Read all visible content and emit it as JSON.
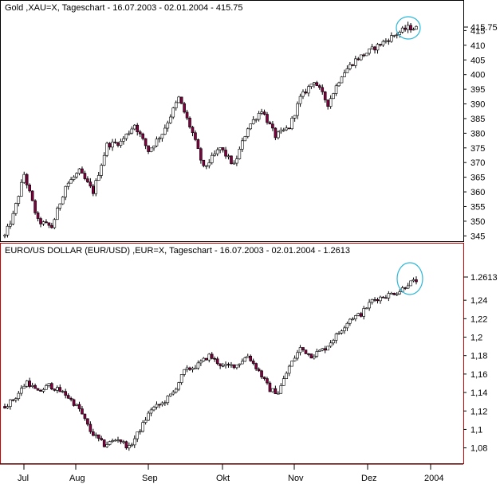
{
  "colors": {
    "bull": "#ffffff",
    "bear": "#800040",
    "wick": "#000000",
    "highlight": "#2bb7d8",
    "panel_border_active": "#cc0000",
    "panel_border": "#000000"
  },
  "x_axis": {
    "labels": [
      "Jul",
      "Aug",
      "Sep",
      "Okt",
      "Nov",
      "Dez",
      "2004"
    ]
  },
  "chart_data": [
    {
      "type": "candlestick",
      "title": "Gold ,XAU=X, Tageschart - 16.07.2003 - 02.01.2004 - 415.75",
      "last_value": "415.75",
      "y_ticks": [
        "415",
        "410",
        "405",
        "400",
        "395",
        "390",
        "385",
        "380",
        "375",
        "370",
        "365",
        "360",
        "355",
        "350",
        "345"
      ],
      "ylim": [
        344,
        420
      ],
      "x_range": [
        "2003-07-16",
        "2004-01-02"
      ],
      "grid": false,
      "anchors": [
        [
          0,
          345
        ],
        [
          3,
          352
        ],
        [
          7,
          366
        ],
        [
          12,
          350
        ],
        [
          17,
          348
        ],
        [
          22,
          362
        ],
        [
          27,
          367
        ],
        [
          32,
          360
        ],
        [
          37,
          376
        ],
        [
          42,
          377
        ],
        [
          47,
          383
        ],
        [
          52,
          374
        ],
        [
          57,
          380
        ],
        [
          63,
          392
        ],
        [
          68,
          380
        ],
        [
          72,
          368
        ],
        [
          78,
          375
        ],
        [
          83,
          369
        ],
        [
          88,
          382
        ],
        [
          93,
          388
        ],
        [
          98,
          379
        ],
        [
          103,
          382
        ],
        [
          107,
          392
        ],
        [
          112,
          398
        ],
        [
          117,
          390
        ],
        [
          122,
          400
        ],
        [
          127,
          405
        ],
        [
          132,
          408
        ],
        [
          137,
          411
        ],
        [
          142,
          414
        ],
        [
          146,
          416
        ],
        [
          149,
          415.75
        ]
      ]
    },
    {
      "type": "candlestick",
      "title": "EURO/US DOLLAR (EUR/USD) ,EUR=X, Tageschart - 16.07.2003 - 02.01.2004 - 1.2613",
      "last_value": "1.2613",
      "y_ticks": [
        "1,24",
        "1,22",
        "1,2",
        "1,18",
        "1,16",
        "1,14",
        "1,12",
        "1,1",
        "1,08"
      ],
      "ylim": [
        1.065,
        1.285
      ],
      "x_range": [
        "2003-07-16",
        "2004-01-02"
      ],
      "grid": false,
      "anchors": [
        [
          0,
          1.125
        ],
        [
          4,
          1.135
        ],
        [
          8,
          1.152
        ],
        [
          12,
          1.14
        ],
        [
          16,
          1.148
        ],
        [
          22,
          1.138
        ],
        [
          27,
          1.122
        ],
        [
          31,
          1.098
        ],
        [
          36,
          1.083
        ],
        [
          41,
          1.09
        ],
        [
          45,
          1.08
        ],
        [
          49,
          1.1
        ],
        [
          53,
          1.122
        ],
        [
          57,
          1.128
        ],
        [
          61,
          1.14
        ],
        [
          65,
          1.163
        ],
        [
          70,
          1.17
        ],
        [
          74,
          1.18
        ],
        [
          79,
          1.168
        ],
        [
          84,
          1.17
        ],
        [
          88,
          1.18
        ],
        [
          92,
          1.163
        ],
        [
          96,
          1.143
        ],
        [
          99,
          1.14
        ],
        [
          103,
          1.168
        ],
        [
          107,
          1.188
        ],
        [
          111,
          1.18
        ],
        [
          116,
          1.188
        ],
        [
          121,
          1.205
        ],
        [
          125,
          1.22
        ],
        [
          129,
          1.225
        ],
        [
          133,
          1.24
        ],
        [
          138,
          1.245
        ],
        [
          143,
          1.25
        ],
        [
          146,
          1.258
        ],
        [
          149,
          1.2613
        ]
      ]
    }
  ]
}
